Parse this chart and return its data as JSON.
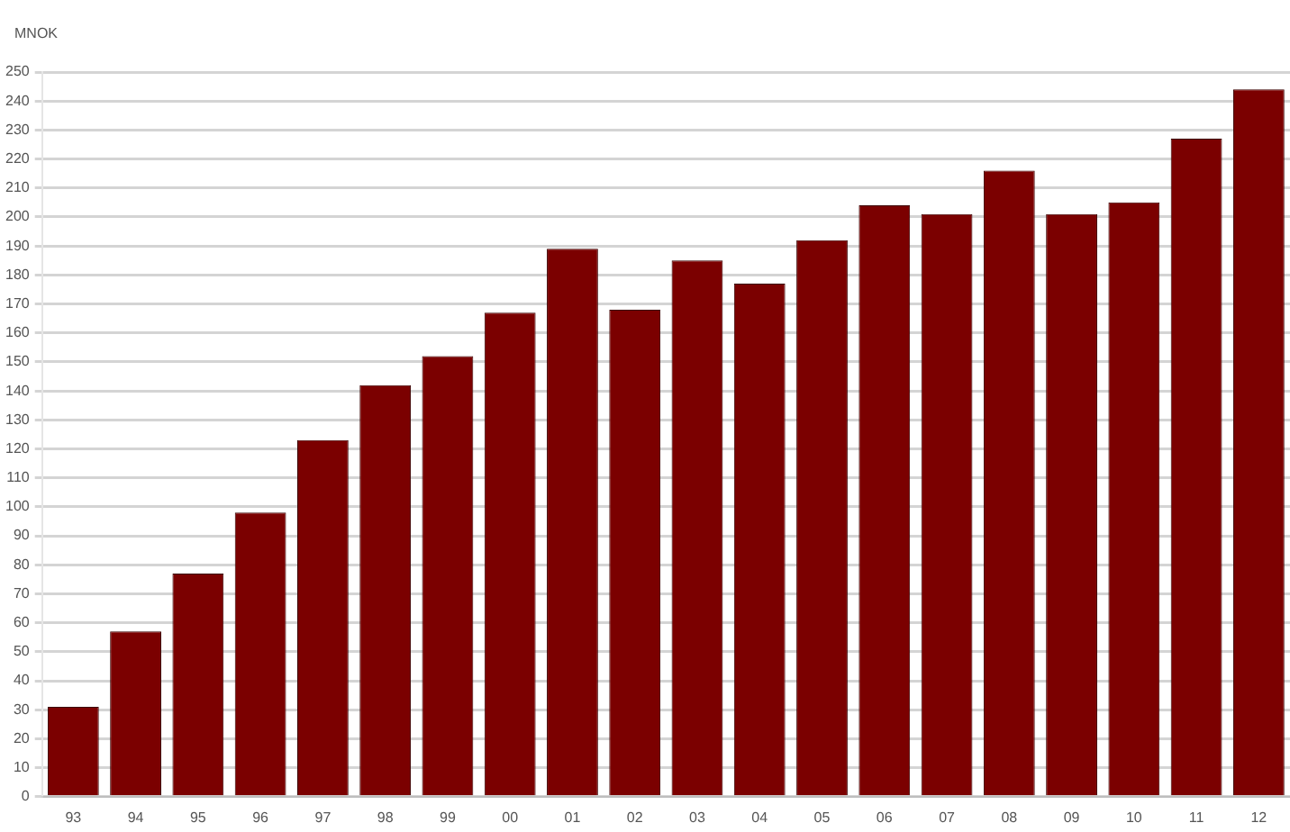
{
  "chart_data": {
    "type": "bar",
    "ylabel": "MNOK",
    "categories": [
      "93",
      "94",
      "95",
      "96",
      "97",
      "98",
      "99",
      "00",
      "01",
      "02",
      "03",
      "04",
      "05",
      "06",
      "07",
      "08",
      "09",
      "10",
      "11",
      "12"
    ],
    "values": [
      31,
      57,
      77,
      98,
      123,
      142,
      152,
      167,
      189,
      168,
      185,
      177,
      192,
      204,
      201,
      216,
      201,
      205,
      227,
      244
    ],
    "color": "#7b0000",
    "ylim": [
      0,
      250
    ],
    "yticks": [
      0,
      10,
      20,
      30,
      40,
      50,
      60,
      70,
      80,
      90,
      100,
      110,
      120,
      130,
      140,
      150,
      160,
      170,
      180,
      190,
      200,
      210,
      220,
      230,
      240,
      250
    ],
    "grid": "y",
    "legend": false
  }
}
